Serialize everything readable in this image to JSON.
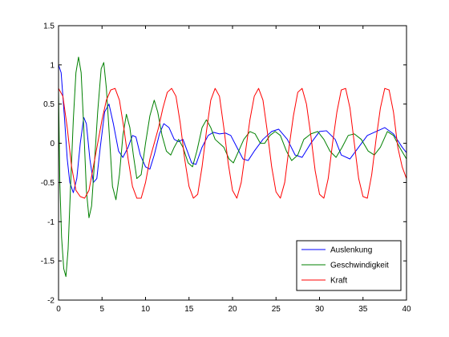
{
  "chart_data": {
    "type": "line",
    "title": "",
    "xlabel": "",
    "ylabel": "",
    "xlim": [
      0,
      40
    ],
    "ylim": [
      -2,
      1.5
    ],
    "xticks": [
      0,
      5,
      10,
      15,
      20,
      25,
      30,
      35,
      40
    ],
    "yticks": [
      -2,
      -1.5,
      -1,
      -0.5,
      0,
      0.5,
      1,
      1.5
    ],
    "xtick_labels": [
      "0",
      "5",
      "10",
      "15",
      "20",
      "25",
      "30",
      "35",
      "40"
    ],
    "ytick_labels": [
      "-2",
      "-1.5",
      "-1",
      "-0.5",
      "0",
      "0.5",
      "1",
      "1.5"
    ],
    "grid": false,
    "legend_position": "bottom-right",
    "series": [
      {
        "name": "Auslenkung",
        "color": "#0000ff",
        "points": [
          [
            0,
            1.0
          ],
          [
            0.3,
            0.9
          ],
          [
            0.7,
            0.3
          ],
          [
            1.0,
            -0.2
          ],
          [
            1.3,
            -0.5
          ],
          [
            1.7,
            -0.63
          ],
          [
            2.1,
            -0.45
          ],
          [
            2.5,
            0.0
          ],
          [
            2.9,
            0.33
          ],
          [
            3.2,
            0.25
          ],
          [
            3.6,
            -0.2
          ],
          [
            4.0,
            -0.5
          ],
          [
            4.4,
            -0.45
          ],
          [
            4.8,
            -0.05
          ],
          [
            5.3,
            0.4
          ],
          [
            5.8,
            0.5
          ],
          [
            6.3,
            0.25
          ],
          [
            6.9,
            -0.1
          ],
          [
            7.4,
            -0.18
          ],
          [
            8.0,
            -0.05
          ],
          [
            8.5,
            0.1
          ],
          [
            8.9,
            0.08
          ],
          [
            9.4,
            -0.15
          ],
          [
            10.0,
            -0.3
          ],
          [
            10.5,
            -0.33
          ],
          [
            11.0,
            -0.15
          ],
          [
            11.6,
            0.12
          ],
          [
            12.1,
            0.25
          ],
          [
            12.7,
            0.2
          ],
          [
            13.3,
            0.05
          ],
          [
            13.8,
            0.02
          ],
          [
            14.3,
            0.05
          ],
          [
            14.8,
            -0.1
          ],
          [
            15.3,
            -0.25
          ],
          [
            15.8,
            -0.27
          ],
          [
            16.5,
            -0.05
          ],
          [
            17.2,
            0.1
          ],
          [
            17.8,
            0.14
          ],
          [
            18.5,
            0.12
          ],
          [
            19.2,
            0.13
          ],
          [
            19.8,
            0.1
          ],
          [
            20.5,
            -0.05
          ],
          [
            21.2,
            -0.2
          ],
          [
            21.8,
            -0.22
          ],
          [
            22.5,
            -0.1
          ],
          [
            23.5,
            0.05
          ],
          [
            24.5,
            0.15
          ],
          [
            25.3,
            0.18
          ],
          [
            26.3,
            0.05
          ],
          [
            27.2,
            -0.15
          ],
          [
            28.0,
            -0.18
          ],
          [
            29.0,
            0.0
          ],
          [
            30.0,
            0.15
          ],
          [
            30.8,
            0.16
          ],
          [
            31.8,
            0.05
          ],
          [
            32.5,
            -0.15
          ],
          [
            33.5,
            -0.2
          ],
          [
            34.5,
            -0.05
          ],
          [
            35.5,
            0.1
          ],
          [
            36.5,
            0.15
          ],
          [
            37.5,
            0.2
          ],
          [
            38.5,
            0.12
          ],
          [
            39.5,
            -0.05
          ],
          [
            40,
            -0.12
          ]
        ]
      },
      {
        "name": "Geschwindigkeit",
        "color": "#008000",
        "points": [
          [
            0,
            0.7
          ],
          [
            0.15,
            -0.5
          ],
          [
            0.35,
            -1.2
          ],
          [
            0.6,
            -1.6
          ],
          [
            0.85,
            -1.7
          ],
          [
            1.1,
            -1.35
          ],
          [
            1.4,
            -0.5
          ],
          [
            1.7,
            0.3
          ],
          [
            2.0,
            0.9
          ],
          [
            2.3,
            1.1
          ],
          [
            2.6,
            0.9
          ],
          [
            2.9,
            0.2
          ],
          [
            3.2,
            -0.6
          ],
          [
            3.5,
            -0.95
          ],
          [
            3.8,
            -0.8
          ],
          [
            4.1,
            -0.3
          ],
          [
            4.5,
            0.4
          ],
          [
            4.9,
            0.95
          ],
          [
            5.2,
            1.03
          ],
          [
            5.5,
            0.7
          ],
          [
            5.9,
            0.0
          ],
          [
            6.2,
            -0.55
          ],
          [
            6.6,
            -0.72
          ],
          [
            7.0,
            -0.4
          ],
          [
            7.4,
            0.1
          ],
          [
            7.8,
            0.37
          ],
          [
            8.2,
            0.2
          ],
          [
            8.6,
            -0.15
          ],
          [
            9.0,
            -0.45
          ],
          [
            9.5,
            -0.4
          ],
          [
            10.0,
            0.0
          ],
          [
            10.5,
            0.35
          ],
          [
            11.0,
            0.55
          ],
          [
            11.4,
            0.4
          ],
          [
            11.9,
            0.1
          ],
          [
            12.4,
            -0.1
          ],
          [
            12.9,
            -0.15
          ],
          [
            13.3,
            -0.05
          ],
          [
            13.8,
            0.05
          ],
          [
            14.3,
            -0.05
          ],
          [
            14.9,
            -0.25
          ],
          [
            15.4,
            -0.3
          ],
          [
            15.9,
            -0.1
          ],
          [
            16.5,
            0.2
          ],
          [
            17.0,
            0.3
          ],
          [
            17.5,
            0.2
          ],
          [
            18.0,
            0.05
          ],
          [
            18.5,
            0.0
          ],
          [
            19.0,
            -0.05
          ],
          [
            19.6,
            -0.2
          ],
          [
            20.1,
            -0.25
          ],
          [
            20.7,
            -0.1
          ],
          [
            21.3,
            0.05
          ],
          [
            22.0,
            0.15
          ],
          [
            22.6,
            0.12
          ],
          [
            23.2,
            0.0
          ],
          [
            23.7,
            0.0
          ],
          [
            24.3,
            0.1
          ],
          [
            24.9,
            0.15
          ],
          [
            25.5,
            0.1
          ],
          [
            26.2,
            -0.1
          ],
          [
            26.8,
            -0.22
          ],
          [
            27.5,
            -0.15
          ],
          [
            28.2,
            0.05
          ],
          [
            29.0,
            0.12
          ],
          [
            29.8,
            0.15
          ],
          [
            30.5,
            0.05
          ],
          [
            31.2,
            -0.1
          ],
          [
            31.9,
            -0.18
          ],
          [
            32.6,
            -0.05
          ],
          [
            33.3,
            0.1
          ],
          [
            34.0,
            0.12
          ],
          [
            34.8,
            0.05
          ],
          [
            35.6,
            -0.1
          ],
          [
            36.3,
            -0.15
          ],
          [
            37.0,
            -0.05
          ],
          [
            37.8,
            0.15
          ],
          [
            38.5,
            0.1
          ],
          [
            39.2,
            -0.05
          ],
          [
            40,
            -0.2
          ]
        ]
      },
      {
        "name": "Kraft",
        "color": "#ff0000",
        "points": [
          [
            0,
            0.7
          ],
          [
            0.5,
            0.6
          ],
          [
            1.0,
            0.2
          ],
          [
            1.5,
            -0.3
          ],
          [
            2.0,
            -0.6
          ],
          [
            2.5,
            -0.68
          ],
          [
            3.0,
            -0.7
          ],
          [
            3.5,
            -0.6
          ],
          [
            4.0,
            -0.3
          ],
          [
            4.5,
            0.0
          ],
          [
            5.0,
            0.3
          ],
          [
            5.5,
            0.55
          ],
          [
            6.0,
            0.68
          ],
          [
            6.5,
            0.7
          ],
          [
            7.0,
            0.55
          ],
          [
            7.5,
            0.2
          ],
          [
            8.0,
            -0.2
          ],
          [
            8.5,
            -0.55
          ],
          [
            9.0,
            -0.7
          ],
          [
            9.5,
            -0.7
          ],
          [
            10.0,
            -0.5
          ],
          [
            10.5,
            -0.2
          ],
          [
            11.0,
            0.0
          ],
          [
            11.5,
            0.2
          ],
          [
            12.0,
            0.45
          ],
          [
            12.5,
            0.65
          ],
          [
            13.0,
            0.7
          ],
          [
            13.5,
            0.6
          ],
          [
            14.0,
            0.25
          ],
          [
            14.5,
            -0.2
          ],
          [
            15.0,
            -0.55
          ],
          [
            15.5,
            -0.7
          ],
          [
            16.0,
            -0.65
          ],
          [
            16.5,
            -0.3
          ],
          [
            17.0,
            0.15
          ],
          [
            17.5,
            0.55
          ],
          [
            18.0,
            0.7
          ],
          [
            18.5,
            0.6
          ],
          [
            19.0,
            0.2
          ],
          [
            19.5,
            -0.25
          ],
          [
            20.0,
            -0.6
          ],
          [
            20.5,
            -0.7
          ],
          [
            21.0,
            -0.5
          ],
          [
            21.5,
            -0.1
          ],
          [
            22.0,
            0.3
          ],
          [
            22.5,
            0.6
          ],
          [
            23.0,
            0.7
          ],
          [
            23.5,
            0.55
          ],
          [
            24.0,
            0.15
          ],
          [
            24.5,
            -0.3
          ],
          [
            25.0,
            -0.62
          ],
          [
            25.5,
            -0.7
          ],
          [
            26.0,
            -0.5
          ],
          [
            26.5,
            -0.05
          ],
          [
            27.0,
            0.35
          ],
          [
            27.5,
            0.65
          ],
          [
            28.0,
            0.7
          ],
          [
            28.5,
            0.5
          ],
          [
            29.0,
            0.1
          ],
          [
            29.5,
            -0.35
          ],
          [
            30.0,
            -0.65
          ],
          [
            30.5,
            -0.7
          ],
          [
            31.0,
            -0.45
          ],
          [
            31.5,
            0.0
          ],
          [
            32.0,
            0.4
          ],
          [
            32.5,
            0.68
          ],
          [
            33.0,
            0.7
          ],
          [
            33.5,
            0.45
          ],
          [
            34.0,
            0.0
          ],
          [
            34.5,
            -0.45
          ],
          [
            35.0,
            -0.68
          ],
          [
            35.5,
            -0.7
          ],
          [
            36.0,
            -0.4
          ],
          [
            36.5,
            0.05
          ],
          [
            37.0,
            0.45
          ],
          [
            37.5,
            0.7
          ],
          [
            38.0,
            0.68
          ],
          [
            38.5,
            0.4
          ],
          [
            39.0,
            -0.05
          ],
          [
            39.5,
            -0.3
          ],
          [
            40,
            -0.45
          ]
        ]
      }
    ]
  }
}
